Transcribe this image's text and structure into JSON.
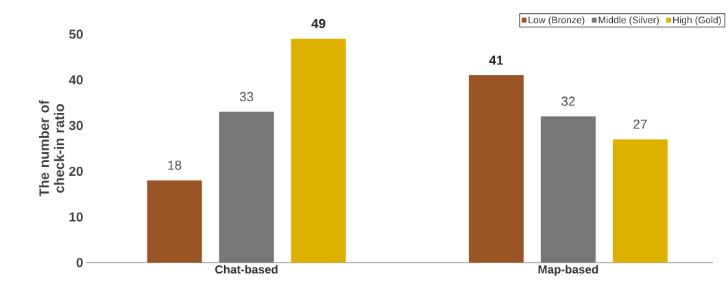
{
  "chart_data": {
    "type": "bar",
    "categories": [
      "Chat-based",
      "Map-based"
    ],
    "ylabel": "The number of check-in ratio",
    "ylim": [
      0,
      50
    ],
    "yticks": [
      0,
      10,
      20,
      30,
      40,
      50
    ],
    "legend": "top right",
    "data_labels": true,
    "series": [
      {
        "name": "Low (Bronze)",
        "color": "#9a5526",
        "values": [
          18,
          41
        ]
      },
      {
        "name": "Middle (Silver)",
        "color": "#777777",
        "values": [
          33,
          32
        ]
      },
      {
        "name": "High (Gold)",
        "color": "#ddb100",
        "values": [
          49,
          27
        ]
      }
    ]
  }
}
